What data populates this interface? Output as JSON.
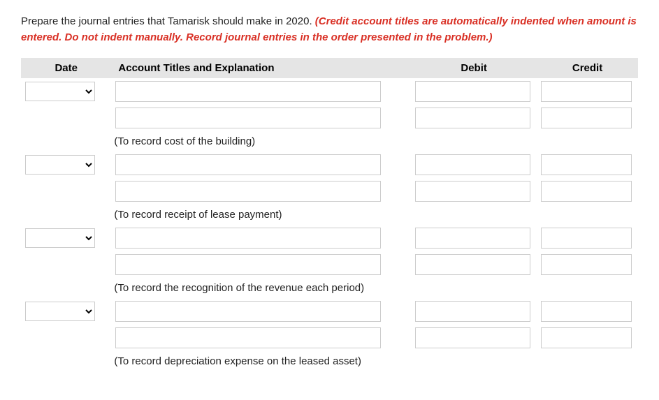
{
  "instruction": {
    "plain": "Prepare the journal entries that Tamarisk should make in 2020. ",
    "red": "(Credit account titles are automatically indented when amount is entered. Do not indent manually. Record journal entries in the order presented in the problem.)"
  },
  "headers": {
    "date": "Date",
    "account": "Account Titles and Explanation",
    "debit": "Debit",
    "credit": "Credit"
  },
  "entries": [
    {
      "note": "(To record cost of the building)"
    },
    {
      "note": "(To record receipt of lease payment)"
    },
    {
      "note": "(To record the recognition of the revenue each period)"
    },
    {
      "note": "(To record depreciation expense on the leased asset)"
    }
  ],
  "colors": {
    "header_bg": "#e5e5e5",
    "red_text": "#d93025",
    "border": "#cccccc"
  }
}
